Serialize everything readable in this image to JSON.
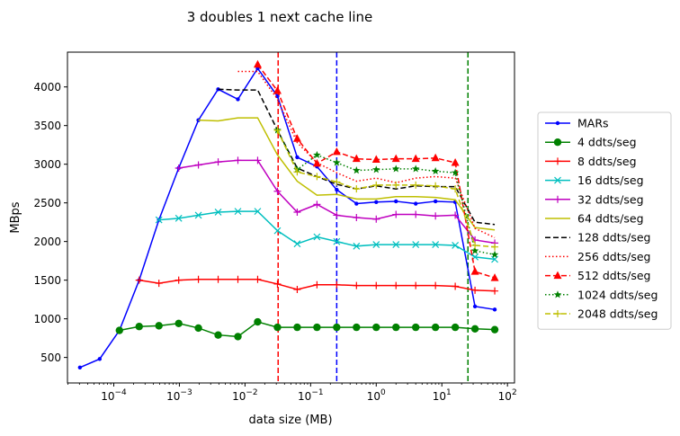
{
  "chart_data": {
    "type": "line",
    "title": "3 doubles 1 next cache line",
    "xlabel": "data size (MB)",
    "ylabel": "MBps",
    "xscale": "log",
    "xlim": [
      1.97e-05,
      128
    ],
    "ylim": [
      170,
      4450
    ],
    "x_ticks": [
      {
        "value": 0.0001,
        "base": "10",
        "exp": "−4"
      },
      {
        "value": 0.001,
        "base": "10",
        "exp": "−3"
      },
      {
        "value": 0.01,
        "base": "10",
        "exp": "−2"
      },
      {
        "value": 0.1,
        "base": "10",
        "exp": "−1"
      },
      {
        "value": 1,
        "base": "10",
        "exp": "0"
      },
      {
        "value": 10,
        "base": "10",
        "exp": "1"
      },
      {
        "value": 100,
        "base": "10",
        "exp": "2"
      }
    ],
    "y_ticks": [
      500,
      1000,
      1500,
      2000,
      2500,
      3000,
      3500,
      4000
    ],
    "grid": false,
    "legend_position": "right",
    "vlines": [
      {
        "x": 0.032,
        "color": "#ff0000"
      },
      {
        "x": 0.25,
        "color": "#0000ff"
      },
      {
        "x": 25,
        "color": "#008000"
      }
    ],
    "series": [
      {
        "name": "MARs",
        "color": "#0000ff",
        "dash": "",
        "marker": "dot",
        "x": [
          3.05e-05,
          6.1e-05,
          0.000122,
          0.000244,
          0.000488,
          0.000977,
          0.00195,
          0.0039,
          0.0078,
          0.0156,
          0.03125,
          0.0625,
          0.125,
          0.25,
          0.5,
          1,
          2,
          4,
          8,
          16,
          32,
          64
        ],
        "y": [
          370,
          480,
          850,
          1500,
          2280,
          2950,
          3570,
          3970,
          3840,
          4240,
          3880,
          3090,
          2970,
          2670,
          2490,
          2510,
          2520,
          2490,
          2520,
          2510,
          1160,
          1120
        ]
      },
      {
        "name": "4 ddts/seg",
        "color": "#008000",
        "dash": "",
        "marker": "circle",
        "x": [
          0.000122,
          0.000244,
          0.000488,
          0.000977,
          0.00195,
          0.0039,
          0.0078,
          0.0156,
          0.03125,
          0.0625,
          0.125,
          0.25,
          0.5,
          1,
          2,
          4,
          8,
          16,
          32,
          64
        ],
        "y": [
          850,
          900,
          910,
          940,
          880,
          790,
          770,
          960,
          890,
          890,
          890,
          890,
          890,
          890,
          890,
          890,
          890,
          890,
          870,
          860
        ]
      },
      {
        "name": "8 ddts/seg",
        "color": "#ff0000",
        "dash": "",
        "marker": "plus",
        "x": [
          0.000244,
          0.000488,
          0.000977,
          0.00195,
          0.0039,
          0.0078,
          0.0156,
          0.03125,
          0.0625,
          0.125,
          0.25,
          0.5,
          1,
          2,
          4,
          8,
          16,
          32,
          64
        ],
        "y": [
          1500,
          1460,
          1500,
          1510,
          1510,
          1510,
          1510,
          1450,
          1380,
          1440,
          1440,
          1430,
          1430,
          1430,
          1430,
          1430,
          1420,
          1370,
          1360
        ]
      },
      {
        "name": "16 ddts/seg",
        "color": "#00bfbf",
        "dash": "",
        "marker": "x",
        "x": [
          0.000488,
          0.000977,
          0.00195,
          0.0039,
          0.0078,
          0.0156,
          0.03125,
          0.0625,
          0.125,
          0.25,
          0.5,
          1,
          2,
          4,
          8,
          16,
          32,
          64
        ],
        "y": [
          2280,
          2300,
          2340,
          2380,
          2390,
          2390,
          2140,
          1970,
          2060,
          2000,
          1940,
          1960,
          1960,
          1960,
          1960,
          1950,
          1800,
          1770
        ]
      },
      {
        "name": "32 ddts/seg",
        "color": "#bf00bf",
        "dash": "",
        "marker": "plus",
        "x": [
          0.000977,
          0.00195,
          0.0039,
          0.0078,
          0.0156,
          0.03125,
          0.0625,
          0.125,
          0.25,
          0.5,
          1,
          2,
          4,
          8,
          16,
          32,
          64
        ],
        "y": [
          2950,
          2990,
          3030,
          3050,
          3050,
          2650,
          2380,
          2480,
          2340,
          2310,
          2290,
          2350,
          2350,
          2330,
          2340,
          2020,
          1980
        ]
      },
      {
        "name": "64 ddts/seg",
        "color": "#bfbf00",
        "dash": "",
        "marker": "",
        "x": [
          0.00195,
          0.0039,
          0.0078,
          0.0156,
          0.03125,
          0.0625,
          0.125,
          0.25,
          0.5,
          1,
          2,
          4,
          8,
          16,
          32,
          64
        ],
        "y": [
          3570,
          3560,
          3600,
          3600,
          3120,
          2780,
          2600,
          2610,
          2550,
          2550,
          2580,
          2580,
          2570,
          2540,
          2180,
          2150
        ]
      },
      {
        "name": "128 ddts/seg",
        "color": "#000000",
        "dash": "6,3",
        "marker": "",
        "x": [
          0.0039,
          0.0078,
          0.0156,
          0.03125,
          0.0625,
          0.125,
          0.25,
          0.5,
          1,
          2,
          4,
          8,
          16,
          32,
          64
        ],
        "y": [
          3970,
          3960,
          3960,
          3440,
          2950,
          2840,
          2740,
          2680,
          2720,
          2680,
          2720,
          2710,
          2710,
          2250,
          2220
        ]
      },
      {
        "name": "256 ddts/seg",
        "color": "#ff0000",
        "dash": "1.5,2.5",
        "marker": "",
        "x": [
          0.0078,
          0.0156,
          0.03125,
          0.0625,
          0.125,
          0.25,
          0.5,
          1,
          2,
          4,
          8,
          16,
          32,
          64
        ],
        "y": [
          4200,
          4200,
          3840,
          3280,
          3020,
          2890,
          2780,
          2820,
          2760,
          2820,
          2840,
          2820,
          2170,
          2050
        ]
      },
      {
        "name": "512 ddts/seg",
        "color": "#ff0000",
        "dash": "6,3",
        "marker": "triangle",
        "x": [
          0.0156,
          0.03125,
          0.0625,
          0.125,
          0.25,
          0.5,
          1,
          2,
          4,
          8,
          16,
          32,
          64
        ],
        "y": [
          4290,
          3950,
          3330,
          3010,
          3160,
          3070,
          3060,
          3070,
          3070,
          3080,
          3020,
          1610,
          1530
        ]
      },
      {
        "name": "1024 ddts/seg",
        "color": "#008000",
        "dash": "1.5,2.5",
        "marker": "star",
        "x": [
          0.03125,
          0.0625,
          0.125,
          0.25,
          0.5,
          1,
          2,
          4,
          8,
          16,
          32,
          64
        ],
        "y": [
          3440,
          2930,
          3120,
          3020,
          2920,
          2930,
          2940,
          2940,
          2910,
          2890,
          1880,
          1830
        ]
      },
      {
        "name": "2048 ddts/seg",
        "color": "#bfbf00",
        "dash": "6,3",
        "marker": "plus",
        "x": [
          0.03125,
          0.0625,
          0.125,
          0.25,
          0.5,
          1,
          2,
          4,
          8,
          16,
          32,
          64
        ],
        "y": [
          3440,
          2900,
          2840,
          2770,
          2680,
          2730,
          2730,
          2730,
          2720,
          2680,
          1950,
          1930
        ]
      }
    ]
  }
}
